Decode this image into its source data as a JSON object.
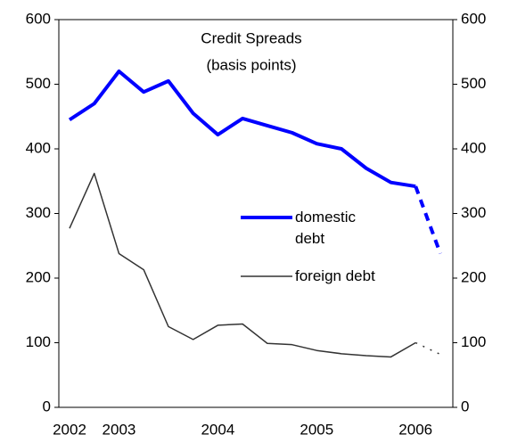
{
  "chart_data": {
    "type": "line",
    "title": "Credit Spreads",
    "subtitle": "(basis points)",
    "categories": [
      "2002",
      null,
      "2003",
      null,
      null,
      null,
      "2004",
      null,
      null,
      null,
      "2005",
      null,
      null,
      null,
      "2006",
      null
    ],
    "series": [
      {
        "name": "domestic debt",
        "color": "#0000ff",
        "dashed_from": 14,
        "values": [
          445,
          470,
          520,
          488,
          505,
          455,
          422,
          447,
          436,
          425,
          408,
          400,
          370,
          348,
          342,
          238
        ]
      },
      {
        "name": "foreign debt",
        "color": "#333333",
        "dashed_from": 14,
        "axis": "y2",
        "values": [
          277,
          362,
          238,
          213,
          125,
          105,
          127,
          129,
          99,
          97,
          88,
          83,
          80,
          78,
          100,
          82
        ]
      }
    ],
    "ylim": [
      0,
      600
    ],
    "yticks": [
      0,
      100,
      200,
      300,
      400,
      500,
      600
    ],
    "y2lim": [
      0,
      600
    ],
    "y2ticks": [
      0,
      100,
      200,
      300,
      400,
      500,
      600
    ]
  }
}
